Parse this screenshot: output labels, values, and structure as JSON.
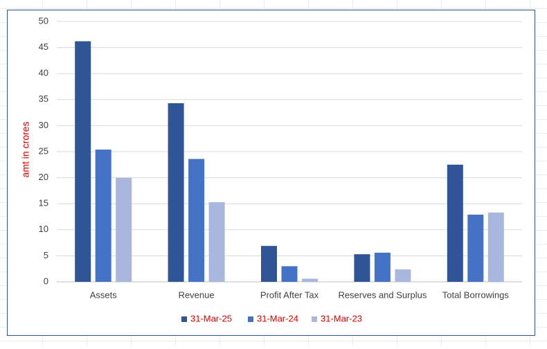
{
  "chart_data": {
    "type": "bar",
    "y_label": "amt in crores",
    "categories": [
      "Assets",
      "Revenue",
      "Profit After Tax",
      "Reserves and Surplus",
      "Total Borrowings"
    ],
    "series": [
      {
        "name": "31-Mar-25",
        "color": "#2f5597",
        "values": [
          46.2,
          34.3,
          6.9,
          5.3,
          22.5
        ]
      },
      {
        "name": "31-Mar-24",
        "color": "#4472c4",
        "values": [
          25.4,
          23.6,
          3.0,
          5.6,
          12.9
        ]
      },
      {
        "name": "31-Mar-23",
        "color": "#a9b7de",
        "values": [
          20.0,
          15.3,
          0.6,
          2.4,
          13.3
        ]
      }
    ],
    "ylim": [
      0,
      50
    ],
    "yticks": [
      0,
      5,
      10,
      15,
      20,
      25,
      30,
      35,
      40,
      45,
      50
    ],
    "grid": true,
    "legend": "bottom"
  }
}
